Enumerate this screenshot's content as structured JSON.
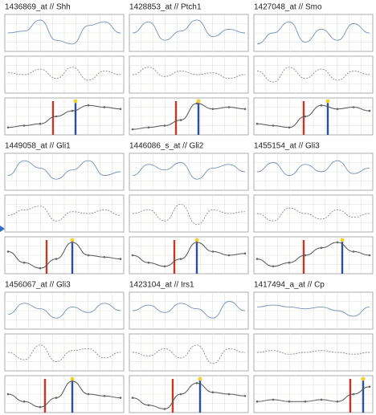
{
  "chart_data": [
    {
      "type": "line",
      "title": "1436869_at // Shh",
      "ylim": [
        0,
        1
      ],
      "series": [
        {
          "name": "top",
          "color": "#7a8fb8",
          "values": [
            0.5,
            0.55,
            0.85,
            0.3,
            0.2,
            0.7,
            0.8,
            0.5
          ]
        },
        {
          "name": "middle",
          "color": "#8a8a8a",
          "values": [
            0.55,
            0.5,
            0.65,
            0.4,
            0.7,
            0.35,
            0.6,
            0.5
          ]
        },
        {
          "name": "bottom",
          "color": "#555555",
          "values": [
            0.2,
            0.25,
            0.3,
            0.5,
            0.65,
            0.8,
            0.75,
            0.7
          ]
        }
      ],
      "bars": [
        {
          "x": 2.8,
          "color": "#c0392b"
        },
        {
          "x": 4.2,
          "color": "#2c4f9e"
        }
      ]
    },
    {
      "type": "line",
      "title": "1428853_at // Ptch1",
      "ylim": [
        0,
        1
      ],
      "series": [
        {
          "name": "top",
          "color": "#7a8fb8",
          "values": [
            0.5,
            0.8,
            0.3,
            0.55,
            0.85,
            0.4,
            0.6,
            0.5
          ]
        },
        {
          "name": "middle",
          "color": "#8a8a8a",
          "values": [
            0.5,
            0.7,
            0.45,
            0.6,
            0.5,
            0.55,
            0.4,
            0.5
          ]
        },
        {
          "name": "bottom",
          "color": "#555555",
          "values": [
            0.15,
            0.2,
            0.25,
            0.4,
            0.85,
            0.7,
            0.75,
            0.7
          ]
        }
      ],
      "bars": [
        {
          "x": 2.7,
          "color": "#c0392b"
        },
        {
          "x": 4.1,
          "color": "#2c4f9e"
        }
      ]
    },
    {
      "type": "line",
      "title": "1427048_at // Smo",
      "ylim": [
        0,
        1
      ],
      "series": [
        {
          "name": "top",
          "color": "#7a8fb8",
          "values": [
            0.2,
            0.5,
            0.8,
            0.25,
            0.6,
            0.3,
            0.75,
            0.5
          ]
        },
        {
          "name": "middle",
          "color": "#8a8a8a",
          "values": [
            0.6,
            0.3,
            0.7,
            0.4,
            0.65,
            0.35,
            0.6,
            0.5
          ]
        },
        {
          "name": "bottom",
          "color": "#555555",
          "values": [
            0.3,
            0.25,
            0.2,
            0.5,
            0.8,
            0.7,
            0.75,
            0.65
          ]
        }
      ],
      "bars": [
        {
          "x": 2.9,
          "color": "#c0392b"
        },
        {
          "x": 4.4,
          "color": "#2c4f9e"
        }
      ]
    },
    {
      "type": "line",
      "title": "1449058_at // Gli1",
      "ylim": [
        0,
        1
      ],
      "series": [
        {
          "name": "top",
          "color": "#7a8fb8",
          "values": [
            0.4,
            0.8,
            0.6,
            0.3,
            0.55,
            0.8,
            0.4,
            0.5
          ]
        },
        {
          "name": "middle",
          "color": "#8a8a8a",
          "values": [
            0.45,
            0.6,
            0.7,
            0.3,
            0.55,
            0.5,
            0.6,
            0.45
          ]
        },
        {
          "name": "bottom",
          "color": "#555555",
          "values": [
            0.6,
            0.3,
            0.15,
            0.4,
            0.85,
            0.5,
            0.45,
            0.4
          ]
        }
      ],
      "bars": [
        {
          "x": 2.4,
          "color": "#c0392b"
        },
        {
          "x": 4.0,
          "color": "#2c4f9e"
        }
      ]
    },
    {
      "type": "line",
      "title": "1446086_s_at // Gli2",
      "ylim": [
        0,
        1
      ],
      "series": [
        {
          "name": "top",
          "color": "#7a8fb8",
          "values": [
            0.4,
            0.7,
            0.55,
            0.75,
            0.3,
            0.6,
            0.7,
            0.5
          ]
        },
        {
          "name": "middle",
          "color": "#8a8a8a",
          "values": [
            0.5,
            0.6,
            0.3,
            0.75,
            0.2,
            0.6,
            0.5,
            0.55
          ]
        },
        {
          "name": "bottom",
          "color": "#555555",
          "values": [
            0.5,
            0.3,
            0.2,
            0.4,
            0.85,
            0.6,
            0.5,
            0.55
          ]
        }
      ],
      "bars": [
        {
          "x": 2.6,
          "color": "#c0392b"
        },
        {
          "x": 4.0,
          "color": "#2c4f9e"
        }
      ]
    },
    {
      "type": "line",
      "title": "1455154_at // Gli3",
      "ylim": [
        0,
        1
      ],
      "series": [
        {
          "name": "top",
          "color": "#7a8fb8",
          "values": [
            0.5,
            0.75,
            0.4,
            0.7,
            0.5,
            0.8,
            0.45,
            0.6
          ]
        },
        {
          "name": "middle",
          "color": "#8a8a8a",
          "values": [
            0.5,
            0.3,
            0.65,
            0.5,
            0.35,
            0.6,
            0.4,
            0.5
          ]
        },
        {
          "name": "bottom",
          "color": "#555555",
          "values": [
            0.4,
            0.2,
            0.3,
            0.5,
            0.7,
            0.85,
            0.6,
            0.5
          ]
        }
      ],
      "bars": [
        {
          "x": 2.9,
          "color": "#c0392b"
        },
        {
          "x": 5.3,
          "color": "#2c4f9e"
        }
      ]
    },
    {
      "type": "line",
      "title": "1456067_at // Gli3",
      "ylim": [
        0,
        1
      ],
      "series": [
        {
          "name": "top",
          "color": "#7a8fb8",
          "values": [
            0.4,
            0.7,
            0.55,
            0.3,
            0.6,
            0.45,
            0.7,
            0.5
          ]
        },
        {
          "name": "middle",
          "color": "#8a8a8a",
          "values": [
            0.5,
            0.3,
            0.7,
            0.25,
            0.55,
            0.6,
            0.35,
            0.5
          ]
        },
        {
          "name": "bottom",
          "color": "#555555",
          "values": [
            0.5,
            0.3,
            0.15,
            0.4,
            0.85,
            0.5,
            0.45,
            0.4
          ]
        }
      ],
      "bars": [
        {
          "x": 2.3,
          "color": "#c0392b"
        },
        {
          "x": 4.0,
          "color": "#2c4f9e"
        }
      ]
    },
    {
      "type": "line",
      "title": "1423104_at // Irs1",
      "ylim": [
        0,
        1
      ],
      "series": [
        {
          "name": "top",
          "color": "#7a8fb8",
          "values": [
            0.5,
            0.65,
            0.45,
            0.7,
            0.55,
            0.3,
            0.75,
            0.5
          ]
        },
        {
          "name": "middle",
          "color": "#8a8a8a",
          "values": [
            0.5,
            0.4,
            0.6,
            0.35,
            0.7,
            0.2,
            0.6,
            0.5
          ]
        },
        {
          "name": "bottom",
          "color": "#555555",
          "values": [
            0.4,
            0.2,
            0.1,
            0.5,
            0.8,
            0.55,
            0.5,
            0.45
          ]
        }
      ],
      "bars": [
        {
          "x": 2.5,
          "color": "#c0392b"
        },
        {
          "x": 4.2,
          "color": "#2c4f9e"
        }
      ]
    },
    {
      "type": "line",
      "title": "1417494_a_at // Cp",
      "ylim": [
        0,
        1
      ],
      "series": [
        {
          "name": "top",
          "color": "#7a8fb8",
          "values": [
            0.6,
            0.65,
            0.6,
            0.55,
            0.6,
            0.5,
            0.35,
            0.6
          ]
        },
        {
          "name": "middle",
          "color": "#8a8a8a",
          "values": [
            0.5,
            0.55,
            0.45,
            0.5,
            0.55,
            0.5,
            0.45,
            0.5
          ]
        },
        {
          "name": "bottom",
          "color": "#555555",
          "values": [
            0.3,
            0.35,
            0.3,
            0.3,
            0.35,
            0.3,
            0.5,
            0.7
          ]
        }
      ],
      "bars": [
        {
          "x": 5.8,
          "color": "#c0392b"
        },
        {
          "x": 6.6,
          "color": "#2c4f9e"
        }
      ]
    }
  ]
}
